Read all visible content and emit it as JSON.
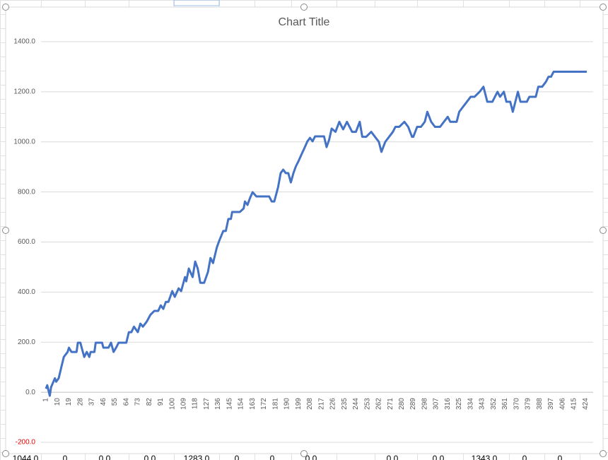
{
  "chart_data": {
    "type": "line",
    "title": "Chart Title",
    "x": [
      1,
      2,
      4,
      5,
      8,
      9,
      11,
      13,
      15,
      18,
      19,
      21,
      25,
      26,
      28,
      29,
      31,
      33,
      35,
      36,
      39,
      40,
      45,
      46,
      50,
      52,
      54,
      56,
      58,
      64,
      66,
      68,
      70,
      73,
      75,
      77,
      80,
      83,
      86,
      89,
      91,
      93,
      95,
      97,
      100,
      102,
      105,
      107,
      110,
      111,
      113,
      116,
      118,
      120,
      122,
      125,
      128,
      130,
      132,
      135,
      137,
      140,
      142,
      144,
      146,
      147,
      150,
      153,
      156,
      157,
      159,
      161,
      163,
      166,
      176,
      178,
      180,
      183,
      185,
      187,
      189,
      191,
      193,
      195,
      197,
      199,
      201,
      203,
      206,
      208,
      210,
      212,
      219,
      221,
      223,
      225,
      228,
      231,
      234,
      237,
      239,
      241,
      244,
      247,
      249,
      252,
      256,
      259,
      262,
      264,
      267,
      270,
      273,
      275,
      278,
      282,
      285,
      288,
      289,
      292,
      295,
      298,
      300,
      303,
      306,
      310,
      313,
      316,
      318,
      323,
      325,
      328,
      331,
      334,
      337,
      341,
      344,
      347,
      351,
      355,
      357,
      360,
      362,
      365,
      367,
      371,
      373,
      378,
      380,
      385,
      387,
      390,
      393,
      395,
      397,
      399,
      425
    ],
    "values": [
      14,
      28,
      -14,
      20,
      56,
      42,
      56,
      99,
      141,
      161,
      178,
      161,
      161,
      198,
      198,
      178,
      141,
      161,
      141,
      161,
      161,
      198,
      198,
      178,
      178,
      198,
      161,
      178,
      198,
      198,
      240,
      240,
      262,
      240,
      274,
      262,
      282,
      310,
      325,
      325,
      347,
      333,
      361,
      361,
      404,
      381,
      415,
      404,
      460,
      443,
      494,
      460,
      522,
      494,
      437,
      437,
      480,
      536,
      516,
      579,
      607,
      644,
      644,
      692,
      692,
      720,
      720,
      720,
      734,
      762,
      748,
      776,
      799,
      782,
      782,
      762,
      762,
      819,
      875,
      889,
      875,
      875,
      838,
      875,
      903,
      923,
      946,
      968,
      1002,
      1016,
      1002,
      1022,
      1022,
      979,
      1008,
      1053,
      1040,
      1080,
      1050,
      1080,
      1060,
      1040,
      1040,
      1080,
      1020,
      1020,
      1040,
      1020,
      1000,
      960,
      1000,
      1020,
      1040,
      1060,
      1060,
      1080,
      1060,
      1020,
      1020,
      1060,
      1060,
      1080,
      1120,
      1080,
      1060,
      1060,
      1080,
      1100,
      1080,
      1080,
      1120,
      1140,
      1160,
      1180,
      1180,
      1200,
      1220,
      1160,
      1160,
      1200,
      1180,
      1200,
      1160,
      1160,
      1120,
      1200,
      1160,
      1160,
      1180,
      1180,
      1220,
      1220,
      1240,
      1260,
      1260,
      1280,
      1280
    ],
    "color": "#4472c4",
    "xlim": [
      1,
      430
    ],
    "xticks": [
      1,
      10,
      19,
      28,
      37,
      46,
      55,
      64,
      73,
      82,
      91,
      100,
      109,
      118,
      127,
      136,
      145,
      154,
      163,
      172,
      181,
      190,
      199,
      208,
      217,
      226,
      235,
      244,
      253,
      262,
      271,
      280,
      289,
      298,
      307,
      316,
      325,
      334,
      343,
      352,
      361,
      370,
      379,
      388,
      397,
      406,
      415,
      424
    ],
    "ylim": [
      -200,
      1400
    ],
    "yticks": [
      {
        "value": -200,
        "label": "-200.0"
      },
      {
        "value": 0,
        "label": "0.0"
      },
      {
        "value": 200,
        "label": "200.0"
      },
      {
        "value": 400,
        "label": "400.0"
      },
      {
        "value": 600,
        "label": "600.0"
      },
      {
        "value": 800,
        "label": "800.0"
      },
      {
        "value": 1000,
        "label": "1000.0"
      },
      {
        "value": 1200,
        "label": "1200.0"
      },
      {
        "value": 1400,
        "label": "1400.0"
      }
    ],
    "grid": true,
    "negative_label_color": "#e00000"
  },
  "sheet_bottom_row": [
    "1044.0",
    "0",
    "0.0",
    "0.0",
    "1283.0",
    "0",
    "0",
    "0.0",
    "0.0",
    "0.0",
    "1343.0",
    "0",
    "0"
  ]
}
